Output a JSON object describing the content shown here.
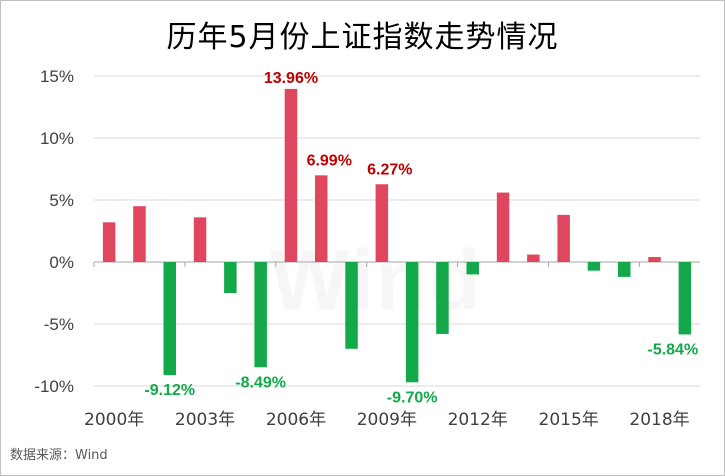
{
  "title": "历年5月份上证指数走势情况",
  "source": "数据来源：Wind",
  "watermark": "Wind",
  "colors": {
    "positive": "#e0465e",
    "negative": "#13a94a",
    "pos_label": "#c00000",
    "neg_label": "#13a94a",
    "grid": "#d9d9d9"
  },
  "chart_data": {
    "type": "bar",
    "title": "历年5月份上证指数走势情况",
    "xlabel": "",
    "ylabel": "",
    "ylim": [
      -10,
      15
    ],
    "yticks": [
      "-10%",
      "-5%",
      "0%",
      "5%",
      "10%",
      "15%"
    ],
    "ytick_values": [
      -10,
      -5,
      0,
      5,
      10,
      15
    ],
    "grid": true,
    "legend": "none",
    "categories": [
      "2000年",
      "2001年",
      "2002年",
      "2003年",
      "2004年",
      "2005年",
      "2006年",
      "2007年",
      "2008年",
      "2009年",
      "2010年",
      "2011年",
      "2012年",
      "2013年",
      "2014年",
      "2015年",
      "2016年",
      "2017年",
      "2018年",
      "2019年"
    ],
    "xtick_labels": [
      "2000年",
      "2003年",
      "2006年",
      "2009年",
      "2012年",
      "2015年",
      "2018年"
    ],
    "xtick_years": [
      2000,
      2003,
      2006,
      2009,
      2012,
      2015,
      2018
    ],
    "values": [
      3.2,
      4.5,
      -9.12,
      3.6,
      -2.5,
      -8.49,
      13.96,
      6.99,
      -7.0,
      6.27,
      -9.7,
      -5.8,
      -1.0,
      5.6,
      0.6,
      3.8,
      -0.7,
      -1.2,
      0.4,
      -5.84
    ],
    "data_labels": [
      {
        "category": "2002年",
        "text": "-9.12%"
      },
      {
        "category": "2005年",
        "text": "-8.49%"
      },
      {
        "category": "2006年",
        "text": "13.96%"
      },
      {
        "category": "2007年",
        "text": "6.99%"
      },
      {
        "category": "2009年",
        "text": "6.27%"
      },
      {
        "category": "2010年",
        "text": "-9.70%"
      },
      {
        "category": "2019年",
        "text": "-5.84%"
      }
    ]
  }
}
